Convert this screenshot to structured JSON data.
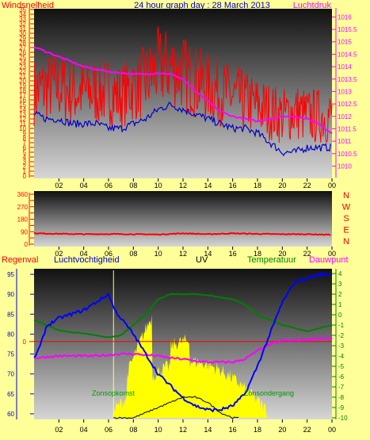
{
  "header": {
    "left_label": "Windsnelheid",
    "title": "24 hour graph day : 28 March 2013",
    "right_label": "Luchtdruk"
  },
  "colors": {
    "background": "#ffff99",
    "wind": "#ff0000",
    "gust_avg": "#0000cc",
    "pressure": "#ff00ff",
    "direction": "#ff0000",
    "rain": "#ff0000",
    "humidity": "#0000ff",
    "uv": "#000000",
    "temperature": "#008000",
    "dewpoint": "#ff00ff",
    "solar": "#ffff00",
    "left_axis": "#ff0000",
    "right_axis": "#ff00ff",
    "dir_axis": "#ff0000",
    "hum_axis": "#0000cc",
    "temp_axis": "#008000"
  },
  "chart_data": [
    {
      "type": "line",
      "title": "24 hour graph day : 28 March 2013",
      "xlabel": "",
      "x_ticks": [
        "02",
        "04",
        "06",
        "08",
        "10",
        "12",
        "14",
        "16",
        "18",
        "20",
        "22",
        "00"
      ],
      "ylabel": "Windsnelheid",
      "ylim": [
        0,
        35
      ],
      "y_ticks": [
        0,
        1,
        2,
        3,
        4,
        5,
        6,
        7,
        8,
        9,
        10,
        11,
        12,
        13,
        14,
        15,
        16,
        17,
        18,
        19,
        20,
        21,
        22,
        23,
        24,
        25,
        26,
        27,
        28,
        29,
        30,
        31,
        32,
        33,
        34,
        35
      ],
      "y2label": "Luchtdruk",
      "y2lim": [
        1009.6,
        1016.3
      ],
      "y2_ticks": [
        "1010",
        "1010.5",
        "1011",
        "1011.5",
        "1012",
        "1012.5",
        "1013",
        "1013.5",
        "1014",
        "1014.5",
        "1015",
        "1015.5",
        "1016"
      ],
      "series": [
        {
          "name": "Windsnelheid",
          "x": [
            0,
            1,
            2,
            3,
            4,
            5,
            6,
            7,
            8,
            9,
            10,
            11,
            12,
            13,
            14,
            15,
            16,
            17,
            18,
            19,
            20,
            21,
            22,
            23,
            24
          ],
          "values": [
            17,
            18,
            18,
            17,
            17,
            17,
            17,
            16,
            18,
            19,
            22,
            22,
            21,
            19,
            18,
            17,
            16,
            15,
            14,
            13,
            12,
            13,
            12,
            12,
            12
          ]
        },
        {
          "name": "",
          "x": [
            0,
            1,
            2,
            3,
            4,
            5,
            6,
            7,
            8,
            9,
            10,
            11,
            12,
            13,
            14,
            15,
            16,
            17,
            18,
            19,
            20,
            21,
            22,
            23,
            24
          ],
          "values": [
            13,
            12,
            12,
            11,
            11,
            11,
            10,
            10,
            11,
            12,
            14,
            15,
            14,
            13,
            12,
            11,
            10,
            10,
            9,
            7,
            5,
            5,
            6,
            6,
            6
          ]
        },
        {
          "name": "Luchtdruk",
          "x": [
            0,
            1,
            2,
            3,
            4,
            5,
            6,
            7,
            8,
            9,
            10,
            11,
            12,
            13,
            14,
            15,
            16,
            17,
            18,
            19,
            20,
            21,
            22,
            23,
            24
          ],
          "values": [
            1014.8,
            1014.6,
            1014.4,
            1014.2,
            1014.0,
            1013.9,
            1013.8,
            1013.75,
            1013.7,
            1013.7,
            1013.75,
            1013.7,
            1013.5,
            1013.0,
            1012.6,
            1012.2,
            1012.0,
            1011.9,
            1011.8,
            1011.9,
            1012.0,
            1012.0,
            1011.9,
            1011.7,
            1011.3
          ]
        }
      ]
    },
    {
      "type": "line",
      "title": "",
      "x_ticks": [
        "02",
        "04",
        "06",
        "08",
        "10",
        "12",
        "14",
        "16",
        "18",
        "20",
        "22",
        "00"
      ],
      "ylim": [
        0,
        360
      ],
      "y_ticks": [
        0,
        45,
        90,
        135,
        180,
        225,
        270,
        315,
        360
      ],
      "y_tick_labels": [
        "0",
        "",
        "90",
        "",
        "180",
        "",
        "270",
        "",
        "360"
      ],
      "compass": [
        "N",
        "W",
        "S",
        "E",
        "N"
      ],
      "series": [
        {
          "name": "",
          "x": [
            0,
            2,
            4,
            6,
            8,
            10,
            12,
            14,
            16,
            18,
            20,
            22,
            24
          ],
          "values": [
            78,
            75,
            72,
            73,
            72,
            70,
            78,
            72,
            78,
            74,
            72,
            72,
            68
          ]
        }
      ]
    },
    {
      "type": "line",
      "title": "",
      "x_ticks": [
        "02",
        "04",
        "06",
        "08",
        "10",
        "12",
        "14",
        "16",
        "18",
        "20",
        "22",
        "00"
      ],
      "legend": [
        "Regenval",
        "Luchtvochtigheid",
        "UV",
        "Temperatuur",
        "Dauwpunt"
      ],
      "annotations": [
        "Zonsopkomst",
        "Zonsondergang"
      ],
      "ylabel": "Luchtvochtigheid",
      "ylim": [
        59,
        96
      ],
      "y_ticks": [
        60,
        65,
        70,
        75,
        80,
        85,
        90,
        95
      ],
      "rain_axis_tick": "0",
      "y2label": "Temperatuur",
      "y2lim": [
        -10,
        4
      ],
      "y2_ticks": [
        4,
        3,
        2,
        1,
        0,
        -1,
        -2,
        -3,
        -4,
        -5,
        -6,
        -7,
        -8,
        -9,
        -10
      ],
      "series": [
        {
          "name": "Luchtvochtigheid",
          "x": [
            0,
            0.5,
            1,
            2,
            3,
            4,
            5,
            5.5,
            6,
            6.5,
            7,
            8,
            9,
            10,
            11,
            12,
            13,
            14,
            15,
            16,
            17,
            18,
            19,
            20,
            21,
            22,
            23,
            24
          ],
          "values": [
            74,
            77,
            82,
            84,
            85,
            86,
            88,
            89,
            90,
            86,
            84,
            80,
            75,
            70,
            67,
            64,
            62,
            61,
            61,
            62,
            65,
            72,
            80,
            88,
            93,
            94,
            95,
            95
          ]
        },
        {
          "name": "Temperatuur",
          "x": [
            0,
            1,
            2,
            3,
            4,
            5,
            6,
            7,
            8,
            9,
            10,
            11,
            12,
            13,
            14,
            15,
            16,
            17,
            18,
            19,
            20,
            21,
            22,
            23,
            24
          ],
          "values": [
            -0.5,
            -1,
            -1.5,
            -1.7,
            -1.8,
            -2,
            -2.2,
            -2,
            -1,
            0,
            1.5,
            2,
            2,
            2,
            1.9,
            1.7,
            1.5,
            1,
            0,
            -0.5,
            -1,
            -1.3,
            -1.6,
            -1.3,
            -1.0
          ]
        },
        {
          "name": "Dauwpunt",
          "x": [
            0,
            1,
            2,
            3,
            4,
            5,
            6,
            7,
            8,
            9,
            10,
            11,
            12,
            13,
            14,
            15,
            16,
            17,
            18,
            19,
            20,
            21,
            22,
            23,
            24
          ],
          "values": [
            -4.2,
            -4.1,
            -4.0,
            -4.0,
            -4.0,
            -4.0,
            -3.9,
            -3.8,
            -3.8,
            -3.9,
            -4.0,
            -4.2,
            -4.3,
            -4.5,
            -4.6,
            -4.6,
            -4.6,
            -4.3,
            -3.5,
            -2.9,
            -2.5,
            -2.5,
            -2.4,
            -2.3,
            -2.3
          ]
        },
        {
          "name": "UV",
          "x": [
            6.4,
            8,
            9,
            10,
            11,
            12,
            13,
            14,
            15,
            16,
            16.5
          ],
          "values": [
            -10,
            -10,
            -9.5,
            -9,
            -8.5,
            -8,
            -8,
            -8.5,
            -9.5,
            -10,
            -10
          ]
        },
        {
          "name": "Regenval",
          "x": [
            0,
            24
          ],
          "values": [
            0,
            0
          ]
        }
      ]
    }
  ]
}
